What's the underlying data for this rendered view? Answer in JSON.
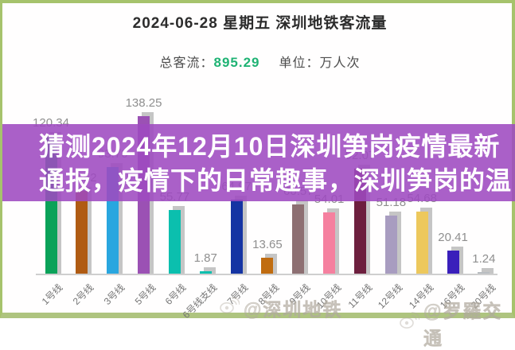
{
  "header": {
    "title": "2024-06-28 星期五  深圳地铁客流量",
    "total_label": "总客流：",
    "total_value": "895.29",
    "unit_label": "单位：万人次",
    "total_value_color": "#1fb374"
  },
  "overlay": {
    "line1": "猜测2024年12月10日深圳笋岗疫情最新",
    "line2": "通报，疫情下的日常趣事，深圳笋岗的温",
    "background": "#9e4ac0",
    "text_color": "#ffffff"
  },
  "watermarks": [
    {
      "icon": "weibo-icon",
      "text": "@深圳地铁"
    },
    {
      "icon": "weibo-icon",
      "text": "@罗羅交通"
    }
  ],
  "chart_data": {
    "type": "bar",
    "title": "深圳地铁客流量",
    "date": "2024-06-28 星期五",
    "total": 895.29,
    "unit": "万人次",
    "xlabel": "",
    "ylabel": "",
    "ylim": [
      0,
      150
    ],
    "grid": false,
    "legend": false,
    "categories": [
      "1号线",
      "2号线",
      "3号线",
      "5号线",
      "6号线",
      "6号线支线",
      "7号线",
      "8号线",
      "9号线",
      "10号线",
      "11号线",
      "12号线",
      "14号线",
      "16号线",
      "20号线"
    ],
    "values": [
      120.34,
      72.52,
      93.76,
      138.25,
      55.77,
      1.87,
      64.97,
      13.65,
      60.57,
      54.01,
      92.07,
      51.18,
      54.68,
      20.41,
      1.24
    ],
    "bar_colors": [
      "#0ba259",
      "#b05b13",
      "#29a6df",
      "#9b51b4",
      "#0bbfae",
      "#0bbfae",
      "#1534a3",
      "#c06c10",
      "#8d6f72",
      "#f5809f",
      "#6d1f3e",
      "#a89cc0",
      "#edc85c",
      "#3a1fbb",
      "#b9bdc1"
    ],
    "value_label_color": "#8f8f8f",
    "axis_color": "#cfcfcf"
  }
}
